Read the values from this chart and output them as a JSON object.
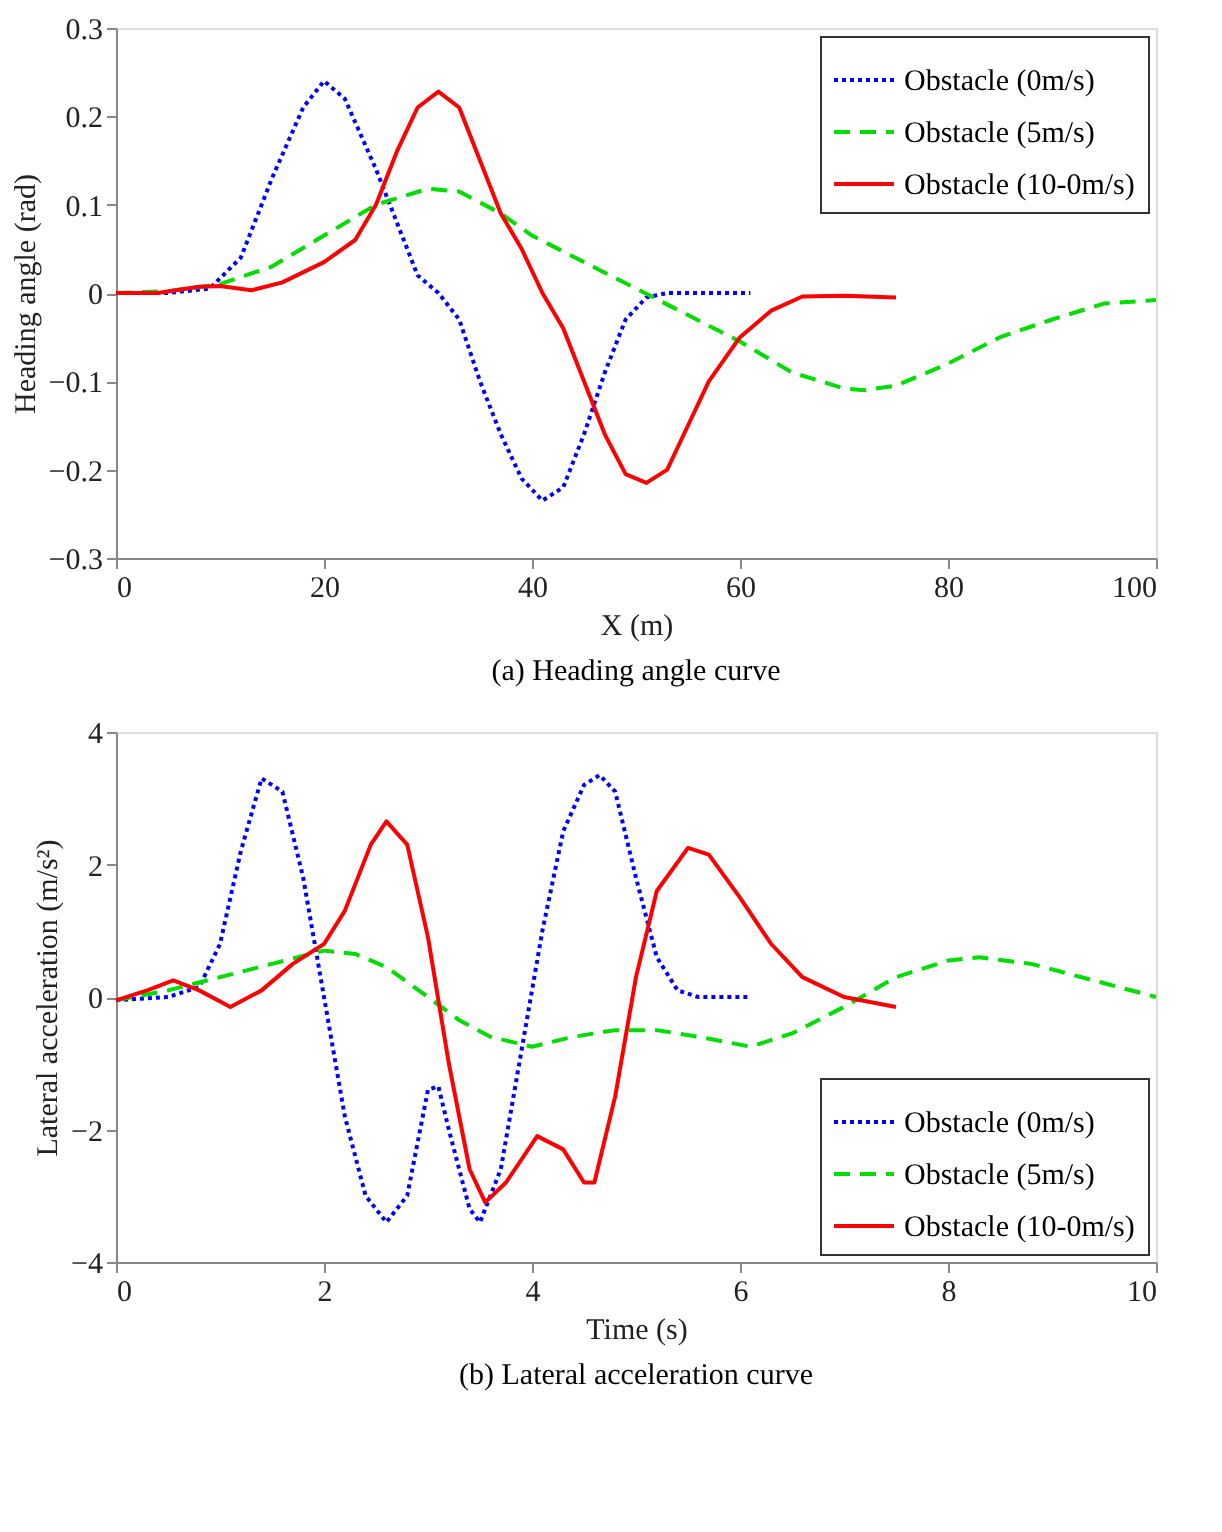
{
  "chart_data": [
    {
      "type": "line",
      "title": "(a)  Heading angle curve",
      "xlabel": "X (m)",
      "ylabel": "Heading angle (rad)",
      "xlim": [
        0,
        100
      ],
      "xticks": [
        0,
        20,
        40,
        60,
        80,
        100
      ],
      "ylim": [
        -0.3,
        0.3
      ],
      "yticks": [
        -0.3,
        -0.2,
        -0.1,
        0,
        0.1,
        0.2,
        0.3
      ],
      "grid": false,
      "legend": "top right",
      "series": [
        {
          "name": "Obstacle (0m/s)",
          "color": "#0000ff",
          "line_style": "dotted",
          "x": [
            0,
            5,
            9,
            12,
            15,
            18,
            20,
            22,
            25,
            27,
            29,
            31,
            33,
            35,
            37,
            39,
            41,
            43,
            45,
            47,
            49,
            51,
            53,
            57,
            61
          ],
          "values": [
            0,
            0,
            0.005,
            0.04,
            0.13,
            0.21,
            0.24,
            0.22,
            0.14,
            0.08,
            0.02,
            0,
            -0.03,
            -0.1,
            -0.16,
            -0.21,
            -0.235,
            -0.22,
            -0.16,
            -0.09,
            -0.03,
            -0.005,
            0,
            0,
            0
          ]
        },
        {
          "name": "Obstacle (5m/s)",
          "color": "#00dd00",
          "line_style": "dashed",
          "x": [
            0,
            5,
            10,
            15,
            20,
            25,
            30,
            33,
            37,
            40,
            45,
            50,
            55,
            60,
            65,
            70,
            72,
            75,
            80,
            85,
            90,
            95,
            100
          ],
          "values": [
            0,
            0.002,
            0.01,
            0.03,
            0.065,
            0.1,
            0.118,
            0.115,
            0.09,
            0.065,
            0.035,
            0.005,
            -0.025,
            -0.055,
            -0.09,
            -0.108,
            -0.11,
            -0.105,
            -0.08,
            -0.05,
            -0.03,
            -0.012,
            -0.008
          ]
        },
        {
          "name": "Obstacle (10-0m/s)",
          "color": "#ff0000",
          "line_style": "solid",
          "x": [
            0,
            4,
            8,
            10,
            13,
            16,
            20,
            23,
            25,
            27,
            29,
            31,
            33,
            35,
            37,
            39,
            41,
            43,
            45,
            47,
            49,
            51,
            53,
            55,
            57,
            60,
            63,
            66,
            70,
            75
          ],
          "values": [
            0,
            0,
            0.007,
            0.008,
            0.003,
            0.012,
            0.035,
            0.06,
            0.1,
            0.16,
            0.21,
            0.228,
            0.21,
            0.15,
            0.09,
            0.05,
            0,
            -0.04,
            -0.1,
            -0.16,
            -0.205,
            -0.215,
            -0.2,
            -0.15,
            -0.1,
            -0.05,
            -0.02,
            -0.004,
            -0.003,
            -0.005
          ]
        }
      ]
    },
    {
      "type": "line",
      "title": "(b) Lateral acceleration curve",
      "xlabel": "Time (s)",
      "ylabel": "Lateral acceleration (m/s²)",
      "xlim": [
        0,
        10
      ],
      "xticks": [
        0,
        2,
        4,
        6,
        8,
        10
      ],
      "ylim": [
        -4,
        4
      ],
      "yticks": [
        -4,
        -2,
        0,
        2,
        4
      ],
      "grid": false,
      "legend": "bottom right",
      "series": [
        {
          "name": "Obstacle (0m/s)",
          "color": "#0000ff",
          "line_style": "dotted",
          "x": [
            0,
            0.5,
            0.8,
            1.0,
            1.2,
            1.4,
            1.6,
            1.8,
            2.0,
            2.2,
            2.4,
            2.6,
            2.8,
            3.0,
            3.1,
            3.2,
            3.4,
            3.5,
            3.7,
            3.9,
            4.1,
            4.3,
            4.5,
            4.65,
            4.8,
            5.0,
            5.2,
            5.4,
            5.6,
            6.1
          ],
          "values": [
            -0.05,
            0,
            0.15,
            0.8,
            2.2,
            3.3,
            3.1,
            1.8,
            0,
            -1.8,
            -3.0,
            -3.4,
            -3.0,
            -1.4,
            -1.35,
            -2.0,
            -3.2,
            -3.4,
            -2.6,
            -0.8,
            1.0,
            2.5,
            3.2,
            3.35,
            3.1,
            1.8,
            0.6,
            0.1,
            0,
            0
          ]
        },
        {
          "name": "Obstacle (5m/s)",
          "color": "#00dd00",
          "line_style": "dashed",
          "x": [
            0,
            0.5,
            1,
            1.5,
            2,
            2.3,
            2.6,
            3.0,
            3.3,
            3.6,
            4.0,
            4.4,
            4.8,
            5.2,
            5.6,
            6.1,
            6.5,
            7.0,
            7.5,
            8.0,
            8.3,
            8.8,
            9.4,
            10
          ],
          "values": [
            -0.05,
            0.1,
            0.3,
            0.5,
            0.7,
            0.65,
            0.45,
            0,
            -0.35,
            -0.6,
            -0.75,
            -0.6,
            -0.5,
            -0.5,
            -0.6,
            -0.75,
            -0.55,
            -0.15,
            0.3,
            0.55,
            0.6,
            0.5,
            0.25,
            0
          ]
        },
        {
          "name": "Obstacle (10-0m/s)",
          "color": "#ff0000",
          "line_style": "solid",
          "x": [
            0,
            0.3,
            0.55,
            0.8,
            1.1,
            1.4,
            1.7,
            2.0,
            2.2,
            2.45,
            2.6,
            2.8,
            3.0,
            3.2,
            3.4,
            3.55,
            3.75,
            4.05,
            4.3,
            4.5,
            4.6,
            4.8,
            5.0,
            5.2,
            5.5,
            5.7,
            6.0,
            6.3,
            6.6,
            7.0,
            7.5
          ],
          "values": [
            -0.05,
            0.1,
            0.25,
            0.1,
            -0.15,
            0.1,
            0.5,
            0.8,
            1.3,
            2.3,
            2.65,
            2.3,
            0.9,
            -1.0,
            -2.6,
            -3.1,
            -2.8,
            -2.1,
            -2.3,
            -2.8,
            -2.8,
            -1.5,
            0.3,
            1.6,
            2.25,
            2.15,
            1.5,
            0.8,
            0.3,
            0,
            -0.15
          ]
        }
      ]
    }
  ]
}
